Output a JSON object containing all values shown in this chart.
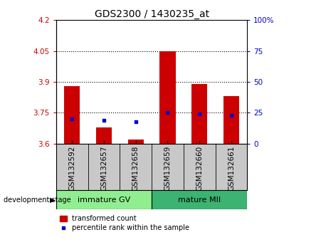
{
  "title": "GDS2300 / 1430235_at",
  "categories": [
    "GSM132592",
    "GSM132657",
    "GSM132658",
    "GSM132659",
    "GSM132660",
    "GSM132661"
  ],
  "red_values": [
    3.88,
    3.68,
    3.62,
    4.05,
    3.89,
    3.83
  ],
  "blue_values": [
    20.0,
    19.0,
    18.0,
    25.0,
    24.0,
    23.0
  ],
  "bar_bottom": 3.6,
  "ylim_left": [
    3.6,
    4.2
  ],
  "ylim_right": [
    0,
    100
  ],
  "yticks_left": [
    3.6,
    3.75,
    3.9,
    4.05,
    4.2
  ],
  "yticks_right": [
    0,
    25,
    50,
    75,
    100
  ],
  "ytick_labels_left": [
    "3.6",
    "3.75",
    "3.9",
    "4.05",
    "4.2"
  ],
  "ytick_labels_right": [
    "0",
    "25",
    "50",
    "75",
    "100%"
  ],
  "hlines": [
    3.75,
    3.9,
    4.05
  ],
  "group1_label": "immature GV",
  "group2_label": "mature MII",
  "group1_color": "#90EE90",
  "group2_color": "#3CB371",
  "stage_label": "development stage",
  "legend_red": "transformed count",
  "legend_blue": "percentile rank within the sample",
  "red_color": "#CC0000",
  "blue_color": "#0000CC",
  "bg_color": "#C8C8C8",
  "title_fontsize": 10,
  "tick_fontsize": 7.5,
  "group_fontsize": 8,
  "legend_fontsize": 7
}
